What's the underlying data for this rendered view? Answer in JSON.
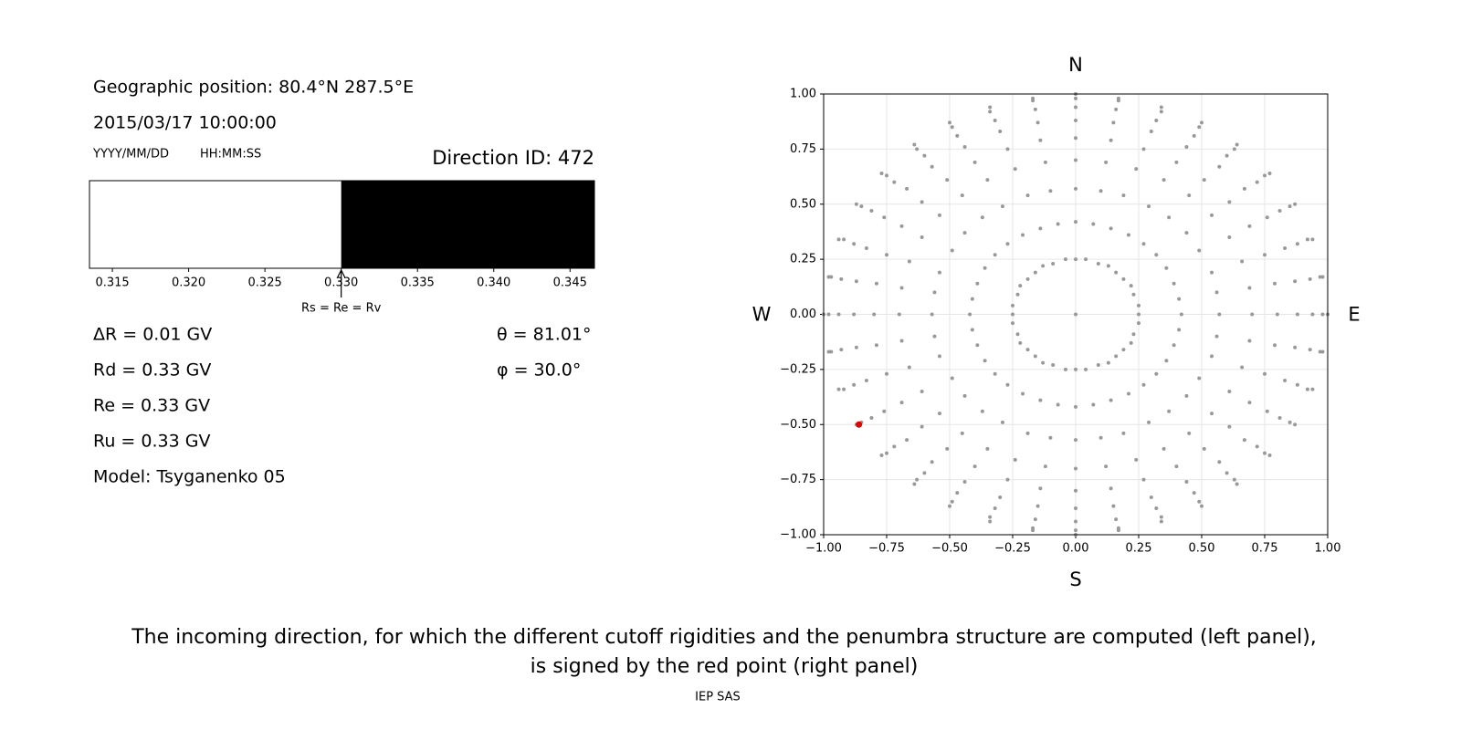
{
  "info": {
    "position": "Geographic position: 80.4°N 287.5°E",
    "datetime": "2015/03/17 10:00:00",
    "date_format": "YYYY/MM/DD",
    "time_format": "HH:MM:SS",
    "rigidities": [
      "ΔR = 0.01 GV",
      "Rd = 0.33 GV",
      "Re = 0.33 GV",
      "Ru = 0.33 GV",
      "Model: Tsyganenko 05"
    ],
    "angles": [
      "θ = 81.01°",
      "φ = 30.0°"
    ]
  },
  "chart_data": [
    {
      "type": "strip",
      "title": "Direction ID: 472",
      "xlim": [
        0.3135,
        0.3466
      ],
      "xticks": [
        0.315,
        {
          "value": 0.32,
          "label": "0.320"
        },
        0.325,
        {
          "value": 0.33,
          "label": "0.330"
        },
        0.335,
        {
          "value": 0.34,
          "label": "0.340"
        },
        0.345
      ],
      "segments": [
        {
          "color": "#ffffff",
          "range": [
            0.3135,
            0.33
          ]
        },
        {
          "color": "#000000",
          "range": [
            0.33,
            0.3466
          ]
        }
      ],
      "marker": {
        "value": 0.33,
        "label": "Rs = Re = Rv"
      }
    },
    {
      "type": "scatter",
      "xlim": [
        -1,
        1
      ],
      "ylim": [
        -1,
        1
      ],
      "grid": true,
      "compass": {
        "N": "N",
        "S": "S",
        "W": "W",
        "E": "E"
      },
      "xticks": [
        {
          "value": -1,
          "label": "−1.00"
        },
        {
          "value": -0.75,
          "label": "−0.75"
        },
        {
          "value": -0.5,
          "label": "−0.50"
        },
        {
          "value": -0.25,
          "label": "−0.25"
        },
        {
          "value": 0,
          "label": "0.00"
        },
        {
          "value": 0.25,
          "label": "0.25"
        },
        {
          "value": 0.5,
          "label": "0.50"
        },
        {
          "value": 0.75,
          "label": "0.75"
        },
        {
          "value": 1,
          "label": "1.00"
        }
      ],
      "yticks": [
        {
          "value": -1,
          "label": "−1.00"
        },
        {
          "value": -0.75,
          "label": "−0.75"
        },
        {
          "value": -0.5,
          "label": "−0.50"
        },
        {
          "value": -0.25,
          "label": "−0.25"
        },
        {
          "value": 0,
          "label": "0.00"
        },
        {
          "value": 0.25,
          "label": "0.25"
        },
        {
          "value": 0.5,
          "label": "0.50"
        },
        {
          "value": 0.75,
          "label": "0.75"
        },
        {
          "value": 1,
          "label": "1.00"
        }
      ],
      "series": [
        {
          "color": "#999999",
          "x": [
            0.25,
            0.42,
            0.57,
            0.7,
            0.8,
            0.88,
            0.94,
            0.98,
            1,
            0.25,
            0.41,
            0.56,
            0.69,
            0.79,
            0.87,
            0.93,
            0.97,
            0.98,
            0.23,
            0.39,
            0.54,
            0.66,
            0.75,
            0.83,
            0.88,
            0.92,
            0.94,
            0.22,
            0.36,
            0.49,
            0.61,
            0.69,
            0.76,
            0.81,
            0.85,
            0.87,
            0.19,
            0.32,
            0.44,
            0.54,
            0.61,
            0.67,
            0.72,
            0.75,
            0.77,
            0.16,
            0.27,
            0.37,
            0.45,
            0.51,
            0.57,
            0.6,
            0.63,
            0.64,
            0.13,
            0.21,
            0.29,
            0.35,
            0.4,
            0.44,
            0.47,
            0.49,
            0.5,
            0.09,
            0.14,
            0.19,
            0.24,
            0.27,
            0.3,
            0.32,
            0.34,
            0.34,
            0.04,
            0.07,
            0.1,
            0.12,
            0.14,
            0.15,
            0.16,
            0.17,
            0.17,
            0,
            0,
            0,
            0,
            0,
            0,
            0,
            0,
            0,
            -0.04,
            -0.07,
            -0.1,
            -0.12,
            -0.14,
            -0.15,
            -0.16,
            -0.17,
            -0.17,
            -0.09,
            -0.14,
            -0.19,
            -0.24,
            -0.27,
            -0.3,
            -0.32,
            -0.34,
            -0.34,
            -0.13,
            -0.21,
            -0.29,
            -0.35,
            -0.4,
            -0.44,
            -0.47,
            -0.49,
            -0.5,
            -0.16,
            -0.27,
            -0.37,
            -0.45,
            -0.51,
            -0.57,
            -0.6,
            -0.63,
            -0.64,
            -0.19,
            -0.32,
            -0.44,
            -0.54,
            -0.61,
            -0.67,
            -0.72,
            -0.75,
            -0.77,
            -0.22,
            -0.36,
            -0.49,
            -0.61,
            -0.69,
            -0.76,
            -0.81,
            -0.85,
            -0.87,
            -0.23,
            -0.39,
            -0.54,
            -0.66,
            -0.75,
            -0.83,
            -0.88,
            -0.92,
            -0.94,
            -0.25,
            -0.41,
            -0.56,
            -0.69,
            -0.79,
            -0.87,
            -0.93,
            -0.97,
            -0.98,
            -0.25,
            -0.42,
            -0.57,
            -0.7,
            -0.8,
            -0.88,
            -0.94,
            -0.98,
            -1,
            -0.25,
            -0.41,
            -0.56,
            -0.69,
            -0.79,
            -0.87,
            -0.93,
            -0.97,
            -0.98,
            -0.23,
            -0.39,
            -0.54,
            -0.66,
            -0.75,
            -0.83,
            -0.88,
            -0.92,
            -0.94,
            -0.22,
            -0.36,
            -0.49,
            -0.61,
            -0.69,
            -0.76,
            -0.81,
            -0.85,
            -0.87,
            -0.19,
            -0.32,
            -0.44,
            -0.54,
            -0.61,
            -0.67,
            -0.72,
            -0.75,
            -0.77,
            -0.16,
            -0.27,
            -0.37,
            -0.45,
            -0.51,
            -0.57,
            -0.6,
            -0.63,
            -0.64,
            -0.13,
            -0.21,
            -0.29,
            -0.35,
            -0.4,
            -0.44,
            -0.47,
            -0.49,
            -0.5,
            -0.09,
            -0.14,
            -0.19,
            -0.24,
            -0.27,
            -0.3,
            -0.32,
            -0.34,
            -0.34,
            -0.04,
            -0.07,
            -0.1,
            -0.12,
            -0.14,
            -0.15,
            -0.16,
            -0.17,
            -0.17,
            0,
            0,
            0,
            0,
            0,
            0,
            0,
            0,
            0,
            0.04,
            0.07,
            0.1,
            0.12,
            0.14,
            0.15,
            0.16,
            0.17,
            0.17,
            0.09,
            0.14,
            0.19,
            0.24,
            0.27,
            0.3,
            0.32,
            0.34,
            0.34,
            0.13,
            0.21,
            0.29,
            0.35,
            0.4,
            0.44,
            0.47,
            0.49,
            0.5,
            0.16,
            0.27,
            0.37,
            0.45,
            0.51,
            0.57,
            0.6,
            0.63,
            0.64,
            0.19,
            0.32,
            0.44,
            0.54,
            0.61,
            0.67,
            0.72,
            0.75,
            0.77,
            0.22,
            0.36,
            0.49,
            0.61,
            0.69,
            0.76,
            0.81,
            0.85,
            0.87,
            0.23,
            0.39,
            0.54,
            0.66,
            0.75,
            0.83,
            0.88,
            0.92,
            0.94,
            0.25,
            0.41,
            0.56,
            0.69,
            0.79,
            0.87,
            0.93,
            0.97,
            0.98,
            0
          ],
          "y": [
            0,
            0,
            0,
            0,
            0,
            0,
            0,
            0,
            0,
            0.04,
            0.07,
            0.1,
            0.12,
            0.14,
            0.15,
            0.16,
            0.17,
            0.17,
            0.09,
            0.14,
            0.19,
            0.24,
            0.27,
            0.3,
            0.32,
            0.34,
            0.34,
            0.13,
            0.21,
            0.29,
            0.35,
            0.4,
            0.44,
            0.47,
            0.49,
            0.5,
            0.16,
            0.27,
            0.37,
            0.45,
            0.51,
            0.57,
            0.6,
            0.63,
            0.64,
            0.19,
            0.32,
            0.44,
            0.54,
            0.61,
            0.67,
            0.72,
            0.75,
            0.77,
            0.22,
            0.36,
            0.49,
            0.61,
            0.69,
            0.76,
            0.81,
            0.85,
            0.87,
            0.23,
            0.39,
            0.54,
            0.66,
            0.75,
            0.83,
            0.88,
            0.92,
            0.94,
            0.25,
            0.41,
            0.56,
            0.69,
            0.79,
            0.87,
            0.93,
            0.97,
            0.98,
            0.25,
            0.42,
            0.57,
            0.7,
            0.8,
            0.88,
            0.94,
            0.98,
            1,
            0.25,
            0.41,
            0.56,
            0.69,
            0.79,
            0.87,
            0.93,
            0.97,
            0.98,
            0.23,
            0.39,
            0.54,
            0.66,
            0.75,
            0.83,
            0.88,
            0.92,
            0.94,
            0.22,
            0.36,
            0.49,
            0.61,
            0.69,
            0.76,
            0.81,
            0.85,
            0.87,
            0.19,
            0.32,
            0.44,
            0.54,
            0.61,
            0.67,
            0.72,
            0.75,
            0.77,
            0.16,
            0.27,
            0.37,
            0.45,
            0.51,
            0.57,
            0.6,
            0.63,
            0.64,
            0.13,
            0.21,
            0.29,
            0.35,
            0.4,
            0.44,
            0.47,
            0.49,
            0.5,
            0.09,
            0.14,
            0.19,
            0.24,
            0.27,
            0.3,
            0.32,
            0.34,
            0.34,
            0.04,
            0.07,
            0.1,
            0.12,
            0.14,
            0.15,
            0.16,
            0.17,
            0.17,
            0,
            0,
            0,
            0,
            0,
            0,
            0,
            0,
            0,
            -0.04,
            -0.07,
            -0.1,
            -0.12,
            -0.14,
            -0.15,
            -0.16,
            -0.17,
            -0.17,
            -0.09,
            -0.14,
            -0.19,
            -0.24,
            -0.27,
            -0.3,
            -0.32,
            -0.34,
            -0.34,
            -0.13,
            -0.21,
            -0.29,
            -0.35,
            -0.4,
            -0.44,
            -0.47,
            -0.49,
            -0.5,
            -0.16,
            -0.27,
            -0.37,
            -0.45,
            -0.51,
            -0.57,
            -0.6,
            -0.63,
            -0.64,
            -0.19,
            -0.32,
            -0.44,
            -0.54,
            -0.61,
            -0.67,
            -0.72,
            -0.75,
            -0.77,
            -0.22,
            -0.36,
            -0.49,
            -0.61,
            -0.69,
            -0.76,
            -0.81,
            -0.85,
            -0.87,
            -0.23,
            -0.39,
            -0.54,
            -0.66,
            -0.75,
            -0.83,
            -0.88,
            -0.92,
            -0.94,
            -0.25,
            -0.41,
            -0.56,
            -0.69,
            -0.79,
            -0.87,
            -0.93,
            -0.97,
            -0.98,
            -0.25,
            -0.42,
            -0.57,
            -0.7,
            -0.8,
            -0.88,
            -0.94,
            -0.98,
            -1,
            -0.25,
            -0.41,
            -0.56,
            -0.69,
            -0.79,
            -0.87,
            -0.93,
            -0.97,
            -0.98,
            -0.23,
            -0.39,
            -0.54,
            -0.66,
            -0.75,
            -0.83,
            -0.88,
            -0.92,
            -0.94,
            -0.22,
            -0.36,
            -0.49,
            -0.61,
            -0.69,
            -0.76,
            -0.81,
            -0.85,
            -0.87,
            -0.19,
            -0.32,
            -0.44,
            -0.54,
            -0.61,
            -0.67,
            -0.72,
            -0.75,
            -0.77,
            -0.16,
            -0.27,
            -0.37,
            -0.45,
            -0.51,
            -0.57,
            -0.6,
            -0.63,
            -0.64,
            -0.13,
            -0.21,
            -0.29,
            -0.35,
            -0.4,
            -0.44,
            -0.47,
            -0.49,
            -0.5,
            -0.09,
            -0.14,
            -0.19,
            -0.24,
            -0.27,
            -0.3,
            -0.32,
            -0.34,
            -0.34,
            -0.04,
            -0.07,
            -0.1,
            -0.12,
            -0.14,
            -0.15,
            -0.16,
            -0.17,
            -0.17,
            0
          ],
          "size": 2
        },
        {
          "color": "#e00000",
          "x": [
            -0.86
          ],
          "y": [
            -0.5
          ],
          "size": 3.5
        }
      ]
    }
  ],
  "caption": [
    "The incoming direction, for which the different cutoff rigidities and the penumbra structure are computed (left panel),",
    "is signed by the red point (right panel)"
  ],
  "footer": "IEP SAS"
}
